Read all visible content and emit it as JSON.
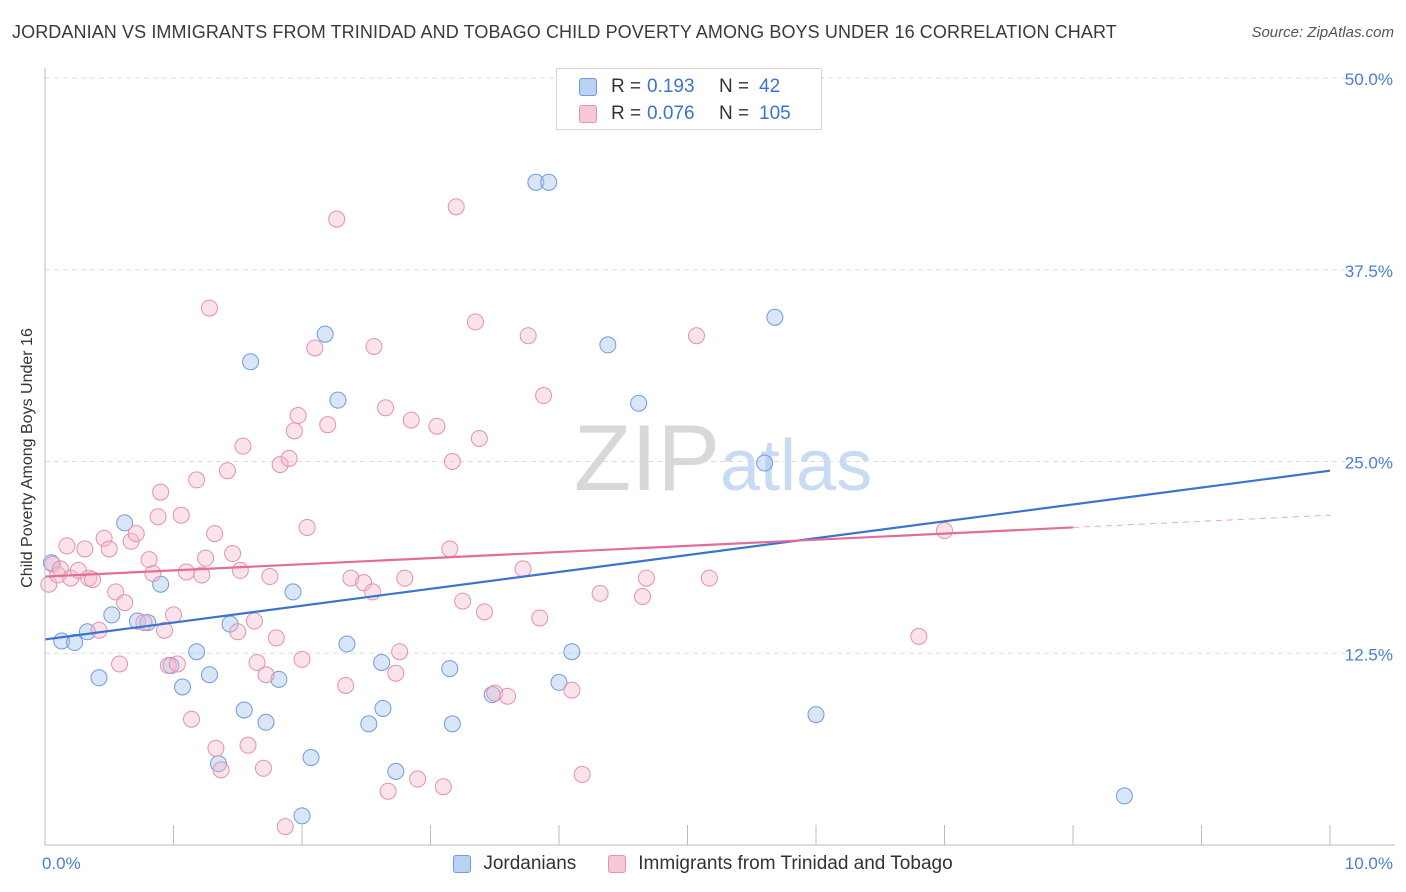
{
  "title": "JORDANIAN VS IMMIGRANTS FROM TRINIDAD AND TOBAGO CHILD POVERTY AMONG BOYS UNDER 16 CORRELATION CHART",
  "source": "Source: ZipAtlas.com",
  "watermark": {
    "part1": "ZIP",
    "part2": "atlas"
  },
  "colors": {
    "blue": "#3b74d0",
    "blue_fill": "#a9c8f0",
    "pink": "#e26d9a",
    "pink_fill": "#f4b8cc",
    "grid": "#dddddd",
    "axis_text": "#4a7fd0"
  },
  "legend": {
    "r_label": "R =",
    "n_label": "N =",
    "series": [
      {
        "name": "Jordanians",
        "r": "0.193",
        "n": "42"
      },
      {
        "name": "Immigrants from Trinidad and Tobago",
        "r": "0.076",
        "n": "105"
      }
    ]
  },
  "chart_data": {
    "type": "scatter",
    "title": "JORDANIAN VS IMMIGRANTS FROM TRINIDAD AND TOBAGO CHILD POVERTY AMONG BOYS UNDER 16 CORRELATION CHART",
    "xlabel": "",
    "ylabel": "Child Poverty Among Boys Under 16",
    "xlim": [
      0,
      10
    ],
    "ylim": [
      0,
      50
    ],
    "x_tick_labels": [
      "0.0%",
      "10.0%"
    ],
    "y_ticks": [
      12.5,
      25.0,
      37.5,
      50.0
    ],
    "y_tick_labels": [
      "12.5%",
      "25.0%",
      "37.5%",
      "50.0%"
    ],
    "grid": true,
    "legend_position": "top-center",
    "series": [
      {
        "name": "Jordanians",
        "color": "#3b74d0",
        "trend": {
          "x": [
            0,
            10
          ],
          "y": [
            13.4,
            24.4
          ]
        },
        "points": [
          [
            0.05,
            18.4
          ],
          [
            0.13,
            13.3
          ],
          [
            0.23,
            13.2
          ],
          [
            0.33,
            13.9
          ],
          [
            0.42,
            10.9
          ],
          [
            0.52,
            15.0
          ],
          [
            0.62,
            21.0
          ],
          [
            0.72,
            14.6
          ],
          [
            0.8,
            14.5
          ],
          [
            0.9,
            17.0
          ],
          [
            0.98,
            11.7
          ],
          [
            1.07,
            10.3
          ],
          [
            1.18,
            12.6
          ],
          [
            1.28,
            11.1
          ],
          [
            1.35,
            5.3
          ],
          [
            1.44,
            14.4
          ],
          [
            1.55,
            8.8
          ],
          [
            1.6,
            31.5
          ],
          [
            1.72,
            8.0
          ],
          [
            1.82,
            10.8
          ],
          [
            1.93,
            16.5
          ],
          [
            2.0,
            1.9
          ],
          [
            2.07,
            5.7
          ],
          [
            2.18,
            33.3
          ],
          [
            2.28,
            29.0
          ],
          [
            2.35,
            13.1
          ],
          [
            2.52,
            7.9
          ],
          [
            2.63,
            8.9
          ],
          [
            2.62,
            11.9
          ],
          [
            2.73,
            4.8
          ],
          [
            3.15,
            11.5
          ],
          [
            3.17,
            7.9
          ],
          [
            3.48,
            9.8
          ],
          [
            3.82,
            43.2
          ],
          [
            3.92,
            43.2
          ],
          [
            4.0,
            10.6
          ],
          [
            4.1,
            12.6
          ],
          [
            4.38,
            32.6
          ],
          [
            4.62,
            28.8
          ],
          [
            5.6,
            24.9
          ],
          [
            5.68,
            34.4
          ],
          [
            6.0,
            8.5
          ],
          [
            8.4,
            3.2
          ]
        ]
      },
      {
        "name": "Immigrants from Trinidad and Tobago",
        "color": "#e26d9a",
        "trend": {
          "x": [
            0,
            8.0
          ],
          "y": [
            17.5,
            20.7
          ]
        },
        "trend_dashed": {
          "x": [
            8.0,
            10.0
          ],
          "y": [
            20.7,
            21.5
          ]
        },
        "points": [
          [
            0.03,
            17.0
          ],
          [
            0.06,
            18.3
          ],
          [
            0.1,
            17.6
          ],
          [
            0.12,
            18.0
          ],
          [
            0.17,
            19.5
          ],
          [
            0.2,
            17.4
          ],
          [
            0.26,
            17.9
          ],
          [
            0.31,
            19.3
          ],
          [
            0.34,
            17.4
          ],
          [
            0.37,
            17.3
          ],
          [
            0.42,
            14.0
          ],
          [
            0.46,
            20.0
          ],
          [
            0.5,
            19.3
          ],
          [
            0.55,
            16.5
          ],
          [
            0.58,
            11.8
          ],
          [
            0.62,
            15.8
          ],
          [
            0.67,
            19.8
          ],
          [
            0.71,
            20.3
          ],
          [
            0.77,
            14.5
          ],
          [
            0.81,
            18.6
          ],
          [
            0.84,
            17.7
          ],
          [
            0.88,
            21.4
          ],
          [
            0.9,
            23.0
          ],
          [
            0.93,
            14.0
          ],
          [
            0.96,
            11.7
          ],
          [
            1.0,
            15.0
          ],
          [
            1.03,
            11.8
          ],
          [
            1.06,
            21.5
          ],
          [
            1.1,
            17.8
          ],
          [
            1.14,
            8.2
          ],
          [
            1.18,
            23.8
          ],
          [
            1.22,
            17.6
          ],
          [
            1.25,
            18.7
          ],
          [
            1.28,
            35.0
          ],
          [
            1.32,
            20.3
          ],
          [
            1.33,
            6.3
          ],
          [
            1.37,
            4.9
          ],
          [
            1.42,
            24.4
          ],
          [
            1.46,
            19.0
          ],
          [
            1.5,
            13.9
          ],
          [
            1.52,
            17.9
          ],
          [
            1.54,
            26.0
          ],
          [
            1.58,
            6.5
          ],
          [
            1.63,
            14.6
          ],
          [
            1.65,
            11.9
          ],
          [
            1.7,
            5.0
          ],
          [
            1.72,
            11.1
          ],
          [
            1.75,
            17.5
          ],
          [
            1.8,
            13.5
          ],
          [
            1.83,
            24.8
          ],
          [
            1.87,
            1.2
          ],
          [
            1.9,
            25.2
          ],
          [
            1.94,
            27.0
          ],
          [
            1.97,
            28.0
          ],
          [
            2.0,
            12.1
          ],
          [
            2.04,
            20.7
          ],
          [
            2.1,
            32.4
          ],
          [
            2.2,
            27.4
          ],
          [
            2.27,
            40.8
          ],
          [
            2.34,
            10.4
          ],
          [
            2.38,
            17.4
          ],
          [
            2.48,
            17.1
          ],
          [
            2.55,
            16.5
          ],
          [
            2.56,
            32.5
          ],
          [
            2.65,
            28.5
          ],
          [
            2.67,
            3.5
          ],
          [
            2.73,
            11.2
          ],
          [
            2.76,
            12.6
          ],
          [
            2.8,
            17.4
          ],
          [
            2.85,
            27.7
          ],
          [
            2.9,
            4.3
          ],
          [
            3.05,
            27.3
          ],
          [
            3.1,
            3.8
          ],
          [
            3.15,
            19.3
          ],
          [
            3.17,
            25.0
          ],
          [
            3.2,
            41.6
          ],
          [
            3.25,
            15.9
          ],
          [
            3.35,
            34.1
          ],
          [
            3.38,
            26.5
          ],
          [
            3.42,
            15.2
          ],
          [
            3.5,
            9.9
          ],
          [
            3.6,
            9.7
          ],
          [
            3.72,
            18.0
          ],
          [
            3.76,
            33.2
          ],
          [
            3.85,
            14.8
          ],
          [
            3.88,
            29.3
          ],
          [
            4.1,
            10.1
          ],
          [
            4.18,
            4.6
          ],
          [
            4.32,
            16.4
          ],
          [
            4.65,
            16.2
          ],
          [
            4.68,
            17.4
          ],
          [
            5.07,
            33.2
          ],
          [
            5.17,
            17.4
          ],
          [
            6.8,
            13.6
          ],
          [
            7.0,
            20.5
          ]
        ]
      }
    ]
  }
}
